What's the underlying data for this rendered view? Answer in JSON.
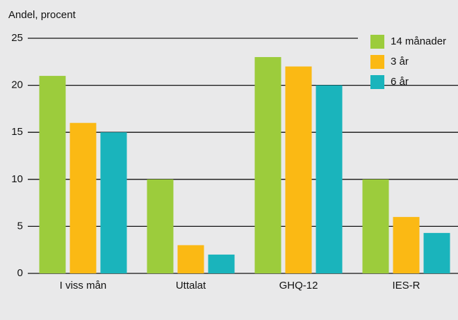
{
  "chart_data": {
    "type": "bar",
    "y_axis_label": "Andel, procent",
    "categories": [
      "I viss mån",
      "Uttalat",
      "GHQ-12",
      "IES-R"
    ],
    "series": [
      {
        "name": "14 månader",
        "color": "#9ccc3c",
        "values": [
          21,
          10,
          23,
          10
        ]
      },
      {
        "name": "3 år",
        "color": "#fbb914",
        "values": [
          16,
          3,
          22,
          6
        ]
      },
      {
        "name": "6 år",
        "color": "#1ab4bc",
        "values": [
          15,
          2,
          20,
          4.3
        ]
      }
    ],
    "ylim": [
      0,
      25
    ],
    "yticks": [
      0,
      5,
      10,
      15,
      20,
      25
    ],
    "grid": true,
    "legend": "top-right"
  }
}
